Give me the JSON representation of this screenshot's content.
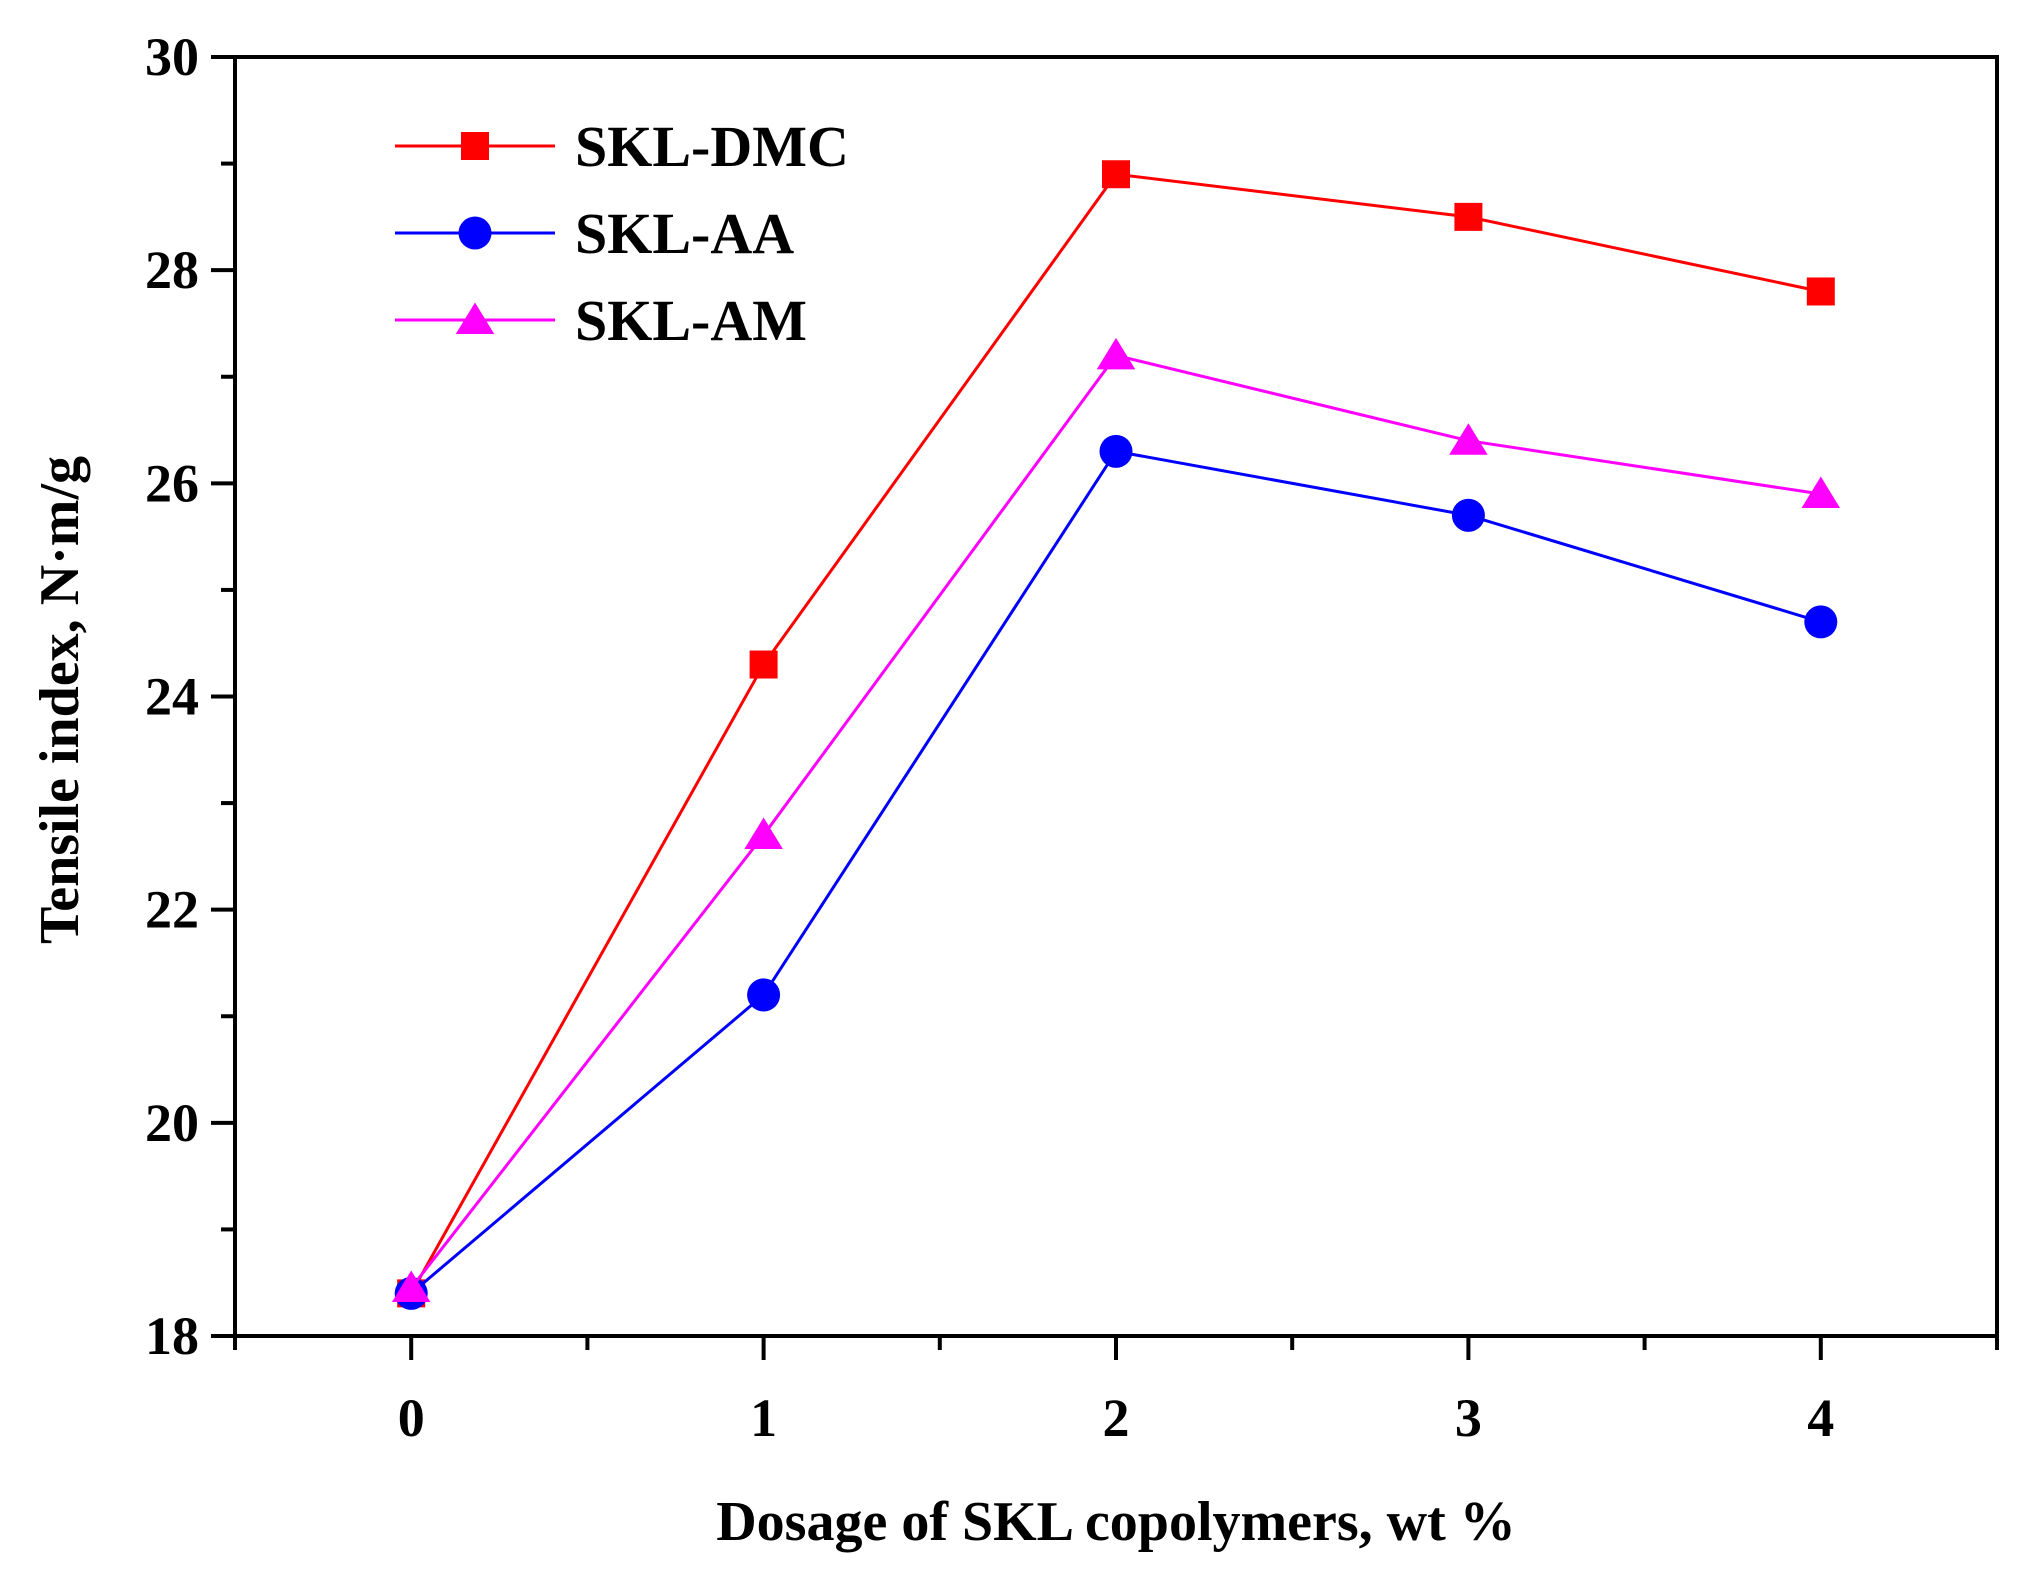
{
  "chart_data": {
    "type": "line",
    "title": "",
    "xlabel": "Dosage of SKL copolymers, wt %",
    "ylabel": "Tensile index, N·m/g",
    "x": [
      0,
      1,
      2,
      3,
      4
    ],
    "xlim": [
      -0.5,
      4.5
    ],
    "ylim": [
      18,
      30
    ],
    "xticks": [
      "0",
      "1",
      "2",
      "3",
      "4"
    ],
    "yticks": [
      "18",
      "20",
      "22",
      "24",
      "26",
      "28",
      "30"
    ],
    "grid": false,
    "legend_position": "top-left",
    "series": [
      {
        "name": "SKL-DMC",
        "color": "#ff0000",
        "marker": "square",
        "values": [
          18.4,
          24.3,
          28.9,
          28.5,
          27.8
        ]
      },
      {
        "name": "SKL-AA",
        "color": "#0000ff",
        "marker": "circle",
        "values": [
          18.4,
          21.2,
          26.3,
          25.7,
          24.7
        ]
      },
      {
        "name": "SKL-AM",
        "color": "#ff00ff",
        "marker": "triangle",
        "values": [
          18.45,
          22.7,
          27.2,
          26.4,
          25.9
        ]
      }
    ]
  }
}
